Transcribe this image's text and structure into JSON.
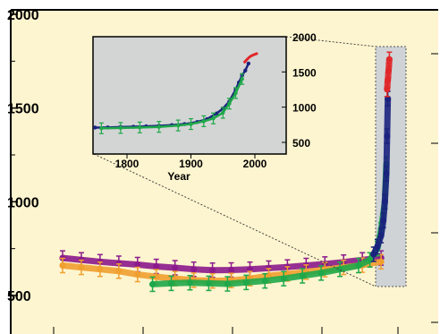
{
  "chart_data": {
    "type": "scatter",
    "title": "",
    "colors": {
      "plot_bg": "#fdf5cf",
      "inset_bg": "#d3d5d5",
      "highlight": "#cfd3d6",
      "purple": "#8b1a8c",
      "orange": "#f0a030",
      "green": "#1fa84a",
      "navy": "#1a237e",
      "red": "#e0282a"
    },
    "main": {
      "ylim": [
        400,
        2000
      ],
      "yticks": [
        "2000",
        "1500",
        "1000",
        "500"
      ],
      "series": [
        {
          "color_key": "purple",
          "x": [
            0,
            25,
            50,
            75,
            100,
            125,
            150,
            175,
            200,
            225,
            250,
            275,
            300,
            325,
            350,
            375,
            400,
            425
          ],
          "values": [
            700,
            690,
            680,
            672,
            665,
            655,
            648,
            640,
            635,
            636,
            640,
            646,
            652,
            660,
            668,
            678,
            690,
            700
          ]
        },
        {
          "color_key": "orange",
          "x": [
            0,
            25,
            50,
            75,
            100,
            125,
            150,
            175,
            200,
            225,
            250,
            275,
            300,
            325,
            350,
            375,
            400,
            425
          ],
          "values": [
            660,
            650,
            640,
            630,
            612,
            600,
            590,
            582,
            578,
            580,
            590,
            605,
            615,
            625,
            638,
            650,
            662,
            680
          ]
        },
        {
          "color_key": "green",
          "x": [
            120,
            145,
            170,
            195,
            220,
            245,
            270,
            295,
            320,
            345,
            370,
            395,
            410,
            420,
            425,
            430,
            432
          ],
          "values": [
            560,
            565,
            568,
            565,
            562,
            570,
            578,
            590,
            605,
            620,
            640,
            660,
            690,
            750,
            850,
            1000,
            1200
          ]
        },
        {
          "color_key": "navy",
          "x": [
            415,
            420,
            425,
            428,
            430,
            432,
            433,
            434
          ],
          "values": [
            720,
            760,
            820,
            900,
            1000,
            1150,
            1350,
            1550
          ]
        },
        {
          "color_key": "red",
          "x": [
            433,
            434,
            435,
            436
          ],
          "values": [
            1600,
            1650,
            1700,
            1760
          ]
        }
      ]
    },
    "inset": {
      "xlim": [
        1750,
        2010
      ],
      "ylim": [
        400,
        2000
      ],
      "xticks": [
        "1800",
        "1900",
        "2000"
      ],
      "yticks": [
        "2000",
        "1500",
        "1000",
        "500"
      ],
      "xlabel": "Year",
      "series": [
        {
          "color_key": "navy",
          "x": [
            1750,
            1770,
            1790,
            1810,
            1830,
            1850,
            1870,
            1890,
            1910,
            1925,
            1940,
            1950,
            1960,
            1970,
            1975,
            1980,
            1985,
            1990
          ],
          "values": [
            710,
            712,
            718,
            722,
            728,
            735,
            745,
            760,
            790,
            830,
            910,
            980,
            1080,
            1250,
            1350,
            1450,
            1520,
            1620
          ]
        },
        {
          "color_key": "green",
          "x": [
            1760,
            1790,
            1820,
            1850,
            1880,
            1900,
            1920,
            1935,
            1950,
            1960,
            1970,
            1980
          ],
          "values": [
            700,
            705,
            712,
            720,
            740,
            760,
            800,
            840,
            920,
            1050,
            1200,
            1400
          ]
        },
        {
          "color_key": "red",
          "x": [
            1984,
            1988,
            1992,
            1996,
            2000,
            2003
          ],
          "values": [
            1640,
            1680,
            1715,
            1735,
            1750,
            1760
          ]
        }
      ]
    }
  }
}
